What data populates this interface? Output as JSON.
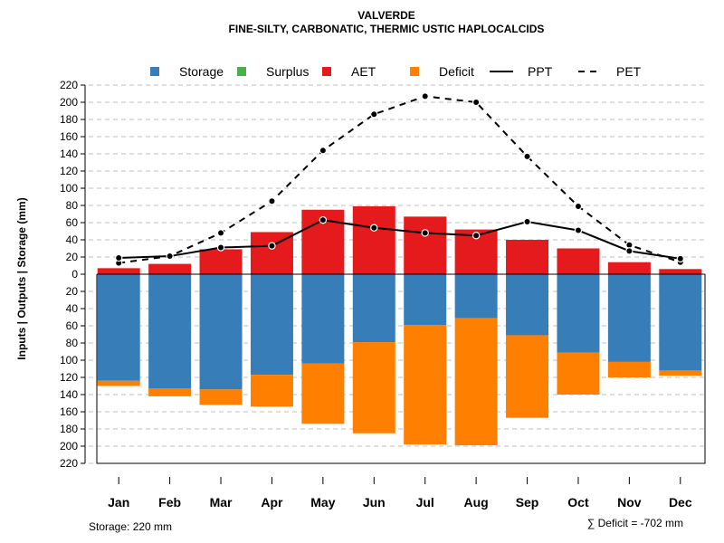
{
  "chart_data": {
    "type": "bar",
    "title": "VALVERDE",
    "subtitle": "FINE-SILTY, CARBONATIC, THERMIC USTIC HAPLOCALCIDS",
    "ylabel": "Inputs | Outputs | Storage     (mm)",
    "ylim": [
      -220,
      220
    ],
    "yticks": [
      220,
      200,
      180,
      160,
      140,
      120,
      100,
      80,
      60,
      40,
      20,
      0,
      -20,
      -40,
      -60,
      -80,
      -100,
      -120,
      -140,
      -160,
      -180,
      -200,
      -220
    ],
    "ytick_labels": [
      "220",
      "200",
      "180",
      "160",
      "140",
      "120",
      "100",
      "80",
      "60",
      "40",
      "20",
      "0",
      "20",
      "40",
      "60",
      "80",
      "100",
      "120",
      "140",
      "160",
      "180",
      "200",
      "220"
    ],
    "grid": true,
    "categories": [
      "Jan",
      "Feb",
      "Mar",
      "Apr",
      "May",
      "Jun",
      "Jul",
      "Aug",
      "Sep",
      "Oct",
      "Nov",
      "Dec"
    ],
    "legend": {
      "position": "top",
      "items": [
        {
          "label": "Storage",
          "color": "#377EB8",
          "kind": "box"
        },
        {
          "label": "Surplus",
          "color": "#4DAF4A",
          "kind": "box"
        },
        {
          "label": "AET",
          "color": "#E41A1C",
          "kind": "box"
        },
        {
          "label": "Deficit",
          "color": "#FF7F00",
          "kind": "box"
        },
        {
          "label": "PPT",
          "color": "#000000",
          "kind": "solid"
        },
        {
          "label": "PET",
          "color": "#000000",
          "kind": "dashed"
        }
      ]
    },
    "series": [
      {
        "name": "AET",
        "color": "#E41A1C",
        "values": [
          7,
          12,
          29,
          49,
          75,
          79,
          67,
          52,
          40,
          30,
          14,
          6
        ]
      },
      {
        "name": "Storage",
        "color": "#377EB8",
        "values": [
          124,
          133,
          134,
          117,
          104,
          79,
          59,
          51,
          71,
          91,
          102,
          112
        ]
      },
      {
        "name": "Deficit",
        "color": "#FF7F00",
        "values": [
          6,
          9,
          18,
          37,
          70,
          106,
          139,
          148,
          96,
          49,
          18,
          6
        ]
      },
      {
        "name": "PPT",
        "color": "#000000",
        "values": [
          19,
          21,
          31,
          33,
          63,
          54,
          48,
          45,
          61,
          51,
          27,
          18
        ]
      },
      {
        "name": "PET",
        "color": "#000000",
        "values": [
          13,
          21,
          48,
          85,
          144,
          186,
          207,
          200,
          137,
          79,
          34,
          14
        ]
      }
    ],
    "footer_left": "Storage: 220 mm",
    "footer_right": "∑ Deficit = -702 mm"
  }
}
